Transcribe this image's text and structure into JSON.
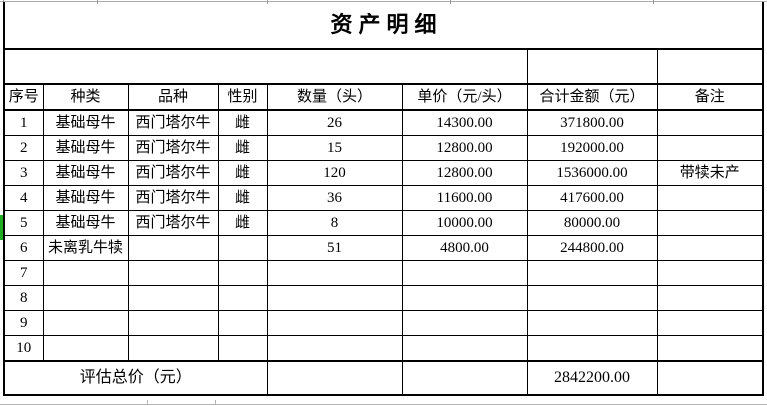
{
  "title": "资产明细",
  "table": {
    "columns": [
      "序号",
      "种类",
      "品种",
      "性别",
      "数量（头）",
      "单价（元/头）",
      "合计金额（元）",
      "备注"
    ],
    "rows": [
      [
        "1",
        "基础母牛",
        "西门塔尔牛",
        "雌",
        "26",
        "14300.00",
        "371800.00",
        ""
      ],
      [
        "2",
        "基础母牛",
        "西门塔尔牛",
        "雌",
        "15",
        "12800.00",
        "192000.00",
        ""
      ],
      [
        "3",
        "基础母牛",
        "西门塔尔牛",
        "雌",
        "120",
        "12800.00",
        "1536000.00",
        "带犊未产"
      ],
      [
        "4",
        "基础母牛",
        "西门塔尔牛",
        "雌",
        "36",
        "11600.00",
        "417600.00",
        ""
      ],
      [
        "5",
        "基础母牛",
        "西门塔尔牛",
        "雌",
        "8",
        "10000.00",
        "80000.00",
        ""
      ],
      [
        "6",
        "未离乳牛犊",
        "",
        "",
        "51",
        "4800.00",
        "244800.00",
        ""
      ],
      [
        "7",
        "",
        "",
        "",
        "",
        "",
        "",
        ""
      ],
      [
        "8",
        "",
        "",
        "",
        "",
        "",
        "",
        ""
      ],
      [
        "9",
        "",
        "",
        "",
        "",
        "",
        "",
        ""
      ],
      [
        "10",
        "",
        "",
        "",
        "",
        "",
        "",
        ""
      ]
    ],
    "total_label": "评估总价（元）",
    "total_value": "2842200.00"
  },
  "colors": {
    "border": "#000000",
    "gridline": "#ababab",
    "row5_marker_green": "#22ac22"
  }
}
